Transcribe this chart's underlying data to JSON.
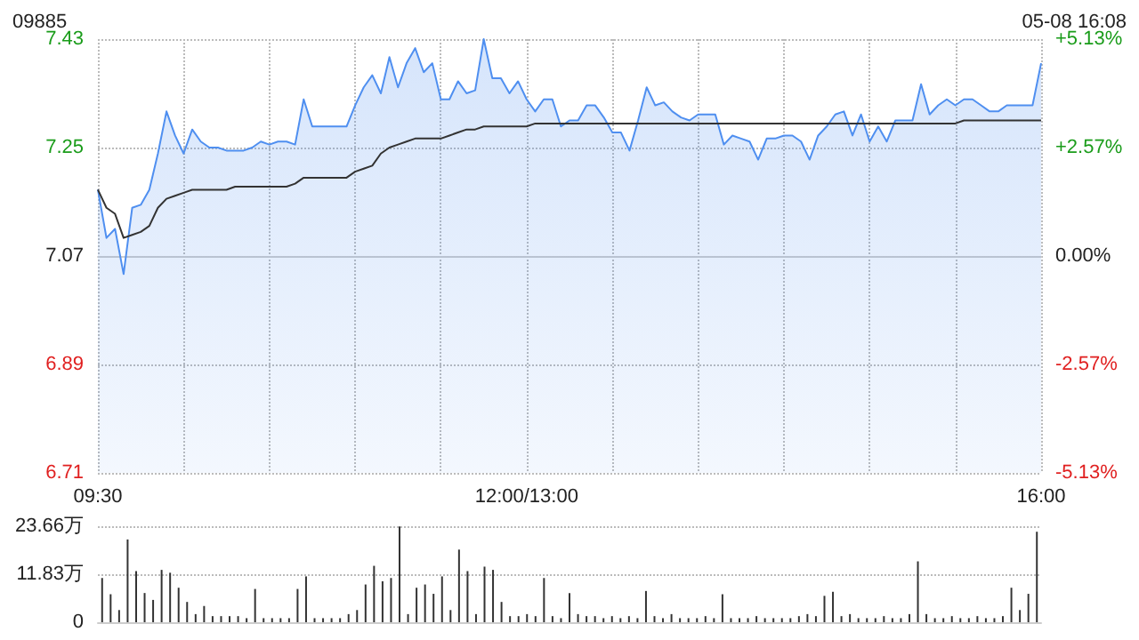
{
  "chart_data": [
    {
      "type": "area",
      "title": "09885",
      "subtitle": "05-08 16:08",
      "categories": [
        "09:30",
        null,
        null,
        null,
        null,
        null,
        null,
        null,
        null,
        null,
        null,
        null,
        null,
        null,
        null,
        null,
        null,
        null,
        null,
        null,
        null,
        null,
        null,
        null,
        null,
        null,
        null,
        null,
        null,
        null,
        null,
        null,
        null,
        null,
        null,
        null,
        null,
        null,
        null,
        null,
        null,
        null,
        null,
        null,
        null,
        null,
        null,
        null,
        null,
        null,
        "12:00/13:00",
        null,
        null,
        null,
        null,
        null,
        null,
        null,
        null,
        null,
        null,
        null,
        null,
        null,
        null,
        null,
        null,
        null,
        null,
        null,
        null,
        null,
        null,
        null,
        null,
        null,
        null,
        null,
        null,
        null,
        null,
        null,
        null,
        null,
        null,
        null,
        null,
        null,
        null,
        null,
        null,
        null,
        null,
        null,
        null,
        null,
        null,
        null,
        null,
        null,
        null,
        null,
        null,
        null,
        null,
        null,
        null,
        null,
        null,
        null,
        "16:00"
      ],
      "series": [
        {
          "type": "area",
          "color": "#4f8ff0",
          "values": [
            7.18,
            7.1,
            7.115,
            7.04,
            7.15,
            7.155,
            7.18,
            7.24,
            7.31,
            7.27,
            7.24,
            7.28,
            7.26,
            7.25,
            7.25,
            7.245,
            7.245,
            7.245,
            7.25,
            7.26,
            7.255,
            7.26,
            7.26,
            7.255,
            7.33,
            7.285,
            7.285,
            7.285,
            7.285,
            7.285,
            7.32,
            7.35,
            7.37,
            7.34,
            7.4,
            7.35,
            7.39,
            7.415,
            7.375,
            7.39,
            7.33,
            7.33,
            7.36,
            7.34,
            7.345,
            7.43,
            7.365,
            7.365,
            7.34,
            7.36,
            7.33,
            7.31,
            7.33,
            7.33,
            7.285,
            7.295,
            7.295,
            7.32,
            7.32,
            7.3,
            7.275,
            7.275,
            7.245,
            7.295,
            7.35,
            7.32,
            7.325,
            7.31,
            7.3,
            7.295,
            7.305,
            7.305,
            7.305,
            7.255,
            7.27,
            7.265,
            7.26,
            7.23,
            7.265,
            7.265,
            7.27,
            7.27,
            7.26,
            7.23,
            7.27,
            7.285,
            7.305,
            7.31,
            7.27,
            7.305,
            7.26,
            7.285,
            7.26,
            7.295,
            7.295,
            7.295,
            7.355,
            7.305,
            7.32,
            7.33,
            7.32,
            7.33,
            7.33,
            7.32,
            7.31,
            7.31,
            7.32,
            7.32,
            7.32,
            7.32,
            7.39
          ]
        },
        {
          "type": "line",
          "color": "#333333",
          "values": [
            7.18,
            7.15,
            7.14,
            7.1,
            7.105,
            7.11,
            7.12,
            7.15,
            7.165,
            7.17,
            7.175,
            7.18,
            7.18,
            7.18,
            7.18,
            7.18,
            7.185,
            7.185,
            7.185,
            7.185,
            7.185,
            7.185,
            7.185,
            7.19,
            7.2,
            7.2,
            7.2,
            7.2,
            7.2,
            7.2,
            7.21,
            7.215,
            7.22,
            7.24,
            7.25,
            7.255,
            7.26,
            7.265,
            7.265,
            7.265,
            7.265,
            7.27,
            7.275,
            7.28,
            7.28,
            7.285,
            7.285,
            7.285,
            7.285,
            7.285,
            7.285,
            7.29,
            7.29,
            7.29,
            7.29,
            7.29,
            7.29,
            7.29,
            7.29,
            7.29,
            7.29,
            7.29,
            7.29,
            7.29,
            7.29,
            7.29,
            7.29,
            7.29,
            7.29,
            7.29,
            7.29,
            7.29,
            7.29,
            7.29,
            7.29,
            7.29,
            7.29,
            7.29,
            7.29,
            7.29,
            7.29,
            7.29,
            7.29,
            7.29,
            7.29,
            7.29,
            7.29,
            7.29,
            7.29,
            7.29,
            7.29,
            7.29,
            7.29,
            7.29,
            7.29,
            7.29,
            7.29,
            7.29,
            7.29,
            7.29,
            7.29,
            7.295,
            7.295,
            7.295,
            7.295,
            7.295,
            7.295,
            7.295,
            7.295,
            7.295,
            7.295
          ]
        }
      ],
      "ylim": [
        6.71,
        7.43
      ],
      "yticks": [
        6.71,
        6.89,
        7.07,
        7.25,
        7.43
      ],
      "y2lim": [
        -5.13,
        5.13
      ],
      "y2ticks": [
        {
          "value": -5.13,
          "label": "-5.13%"
        },
        {
          "value": -2.57,
          "label": "-2.57%"
        },
        {
          "value": 0,
          "label": "0.00%"
        },
        {
          "value": 2.57,
          "label": "+2.57%"
        },
        {
          "value": 5.13,
          "label": "+5.13%"
        }
      ],
      "grid": true
    },
    {
      "type": "bar",
      "color": "#333333",
      "categories": [
        null,
        null,
        null,
        null,
        null,
        null,
        null,
        null,
        null,
        null,
        null,
        null,
        null,
        null,
        null,
        null,
        null,
        null,
        null,
        null,
        null,
        null,
        null,
        null,
        null,
        null,
        null,
        null,
        null,
        null,
        null,
        null,
        null,
        null,
        null,
        null,
        null,
        null,
        null,
        null,
        null,
        null,
        null,
        null,
        null,
        null,
        null,
        null,
        null,
        null,
        null,
        null,
        null,
        null,
        null,
        null,
        null,
        null,
        null,
        null,
        null,
        null,
        null,
        null,
        null,
        null,
        null,
        null,
        null,
        null,
        null,
        null,
        null,
        null,
        null,
        null,
        null,
        null,
        null,
        null,
        null,
        null,
        null,
        null,
        null,
        null,
        null,
        null,
        null,
        null,
        null,
        null,
        null,
        null,
        null,
        null,
        null,
        null,
        null,
        null,
        null,
        null,
        null,
        null,
        null,
        null,
        null,
        null,
        null,
        null,
        null
      ],
      "values": [
        10.9,
        6.9,
        3,
        20.4,
        12.6,
        7.2,
        5.5,
        12.9,
        12.2,
        8.5,
        5,
        2,
        4,
        1.5,
        1.5,
        1.5,
        1.5,
        1,
        8.2,
        1,
        1,
        1,
        1,
        8.2,
        11.3,
        1,
        1,
        1,
        1,
        2,
        3,
        9.3,
        13.9,
        10.1,
        10.9,
        23.6,
        2,
        8.5,
        9.3,
        7,
        11.3,
        3,
        17.9,
        12.6,
        2,
        13.7,
        12.9,
        5,
        1.5,
        1.5,
        2,
        1.5,
        10.9,
        1.5,
        1,
        7.2,
        2,
        1.5,
        1.5,
        1,
        1.5,
        1,
        1.5,
        1,
        7.7,
        1.5,
        1,
        2,
        1,
        1,
        1,
        1.5,
        1,
        6.9,
        1,
        1,
        1,
        1.5,
        1,
        1,
        1,
        1,
        1.5,
        2,
        1.5,
        6.5,
        7.5,
        1.5,
        2,
        1,
        1,
        1,
        1.5,
        1,
        1,
        2,
        15,
        2,
        1,
        1,
        1.5,
        1,
        1,
        1.5,
        1,
        1,
        1.5,
        8.5,
        3,
        7,
        22.3
      ],
      "ylim": [
        0,
        23.66
      ],
      "yticks": [
        0,
        {
          "value": 11.83,
          "label": "11.83万"
        },
        {
          "value": 23.66,
          "label": "23.66万"
        }
      ],
      "grid": "y",
      "tick_labels": "y"
    }
  ]
}
